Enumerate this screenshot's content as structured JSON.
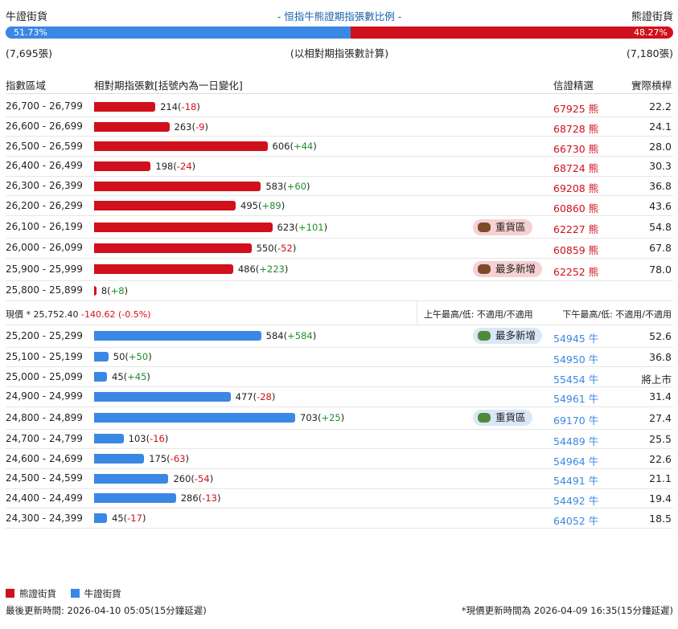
{
  "header": {
    "bull_label": "牛證街貨",
    "title": "- 恒指牛熊證期指張數比例 -",
    "bear_label": "熊證街貨"
  },
  "ratio": {
    "bull_pct_label": "51.73%",
    "bear_pct_label": "48.27%",
    "bull_fraction": 0.5173,
    "bull_color": "#3b87e4",
    "bear_color": "#d0101b"
  },
  "counts": {
    "bull": "(7,695張)",
    "note": "(以相對期指張數計算)",
    "bear": "(7,180張)"
  },
  "columns": {
    "range": "指數區域",
    "contracts": "相對期指張數[括號內為一日變化]",
    "code": "信證精選",
    "leverage": "實際槓桿"
  },
  "bear_rows": [
    {
      "range": "26,700 - 26,799",
      "value": 214,
      "value_text": "214",
      "change": "-18",
      "code": "67925 熊",
      "leverage": "22.2",
      "tag": ""
    },
    {
      "range": "26,600 - 26,699",
      "value": 263,
      "value_text": "263",
      "change": "-9",
      "code": "68728 熊",
      "leverage": "24.1",
      "tag": ""
    },
    {
      "range": "26,500 - 26,599",
      "value": 606,
      "value_text": "606",
      "change": "+44",
      "code": "66730 熊",
      "leverage": "28.0",
      "tag": ""
    },
    {
      "range": "26,400 - 26,499",
      "value": 198,
      "value_text": "198",
      "change": "-24",
      "code": "68724 熊",
      "leverage": "30.3",
      "tag": ""
    },
    {
      "range": "26,300 - 26,399",
      "value": 583,
      "value_text": "583",
      "change": "+60",
      "code": "69208 熊",
      "leverage": "36.8",
      "tag": ""
    },
    {
      "range": "26,200 - 26,299",
      "value": 495,
      "value_text": "495",
      "change": "+89",
      "code": "60860 熊",
      "leverage": "43.6",
      "tag": ""
    },
    {
      "range": "26,100 - 26,199",
      "value": 623,
      "value_text": "623",
      "change": "+101",
      "code": "62227 熊",
      "leverage": "54.8",
      "tag": "重貨區"
    },
    {
      "range": "26,000 - 26,099",
      "value": 550,
      "value_text": "550",
      "change": "-52",
      "code": "60859 熊",
      "leverage": "67.8",
      "tag": ""
    },
    {
      "range": "25,900 - 25,999",
      "value": 486,
      "value_text": "486",
      "change": "+223",
      "code": "62252 熊",
      "leverage": "78.0",
      "tag": "最多新增"
    },
    {
      "range": "25,800 - 25,899",
      "value": 8,
      "value_text": "8",
      "change": "+8",
      "code": "",
      "leverage": "",
      "tag": ""
    }
  ],
  "spot": {
    "label": "現價 *",
    "price": "25,752.40",
    "change": "-140.62 (-0.5%)",
    "am_label": "上午最高/低: 不適用/不適用",
    "pm_label": "下午最高/低: 不適用/不適用"
  },
  "bull_rows": [
    {
      "range": "25,200 - 25,299",
      "value": 584,
      "value_text": "584",
      "change": "+584",
      "code": "54945 牛",
      "leverage": "52.6",
      "tag": "最多新增"
    },
    {
      "range": "25,100 - 25,199",
      "value": 50,
      "value_text": "50",
      "change": "+50",
      "code": "54950 牛",
      "leverage": "36.8",
      "tag": ""
    },
    {
      "range": "25,000 - 25,099",
      "value": 45,
      "value_text": "45",
      "change": "+45",
      "code": "55454 牛",
      "leverage": "將上市",
      "tag": ""
    },
    {
      "range": "24,900 - 24,999",
      "value": 477,
      "value_text": "477",
      "change": "-28",
      "code": "54961 牛",
      "leverage": "31.4",
      "tag": ""
    },
    {
      "range": "24,800 - 24,899",
      "value": 703,
      "value_text": "703",
      "change": "+25",
      "code": "69170 牛",
      "leverage": "27.4",
      "tag": "重貨區"
    },
    {
      "range": "24,700 - 24,799",
      "value": 103,
      "value_text": "103",
      "change": "-16",
      "code": "54489 牛",
      "leverage": "25.5",
      "tag": ""
    },
    {
      "range": "24,600 - 24,699",
      "value": 175,
      "value_text": "175",
      "change": "-63",
      "code": "54964 牛",
      "leverage": "22.6",
      "tag": ""
    },
    {
      "range": "24,500 - 24,599",
      "value": 260,
      "value_text": "260",
      "change": "-54",
      "code": "54491 牛",
      "leverage": "21.1",
      "tag": ""
    },
    {
      "range": "24,400 - 24,499",
      "value": 286,
      "value_text": "286",
      "change": "-13",
      "code": "54492 牛",
      "leverage": "19.4",
      "tag": ""
    },
    {
      "range": "24,300 - 24,399",
      "value": 45,
      "value_text": "45",
      "change": "-17",
      "code": "64052 牛",
      "leverage": "18.5",
      "tag": ""
    }
  ],
  "legend": {
    "bear_label": "熊證街貨",
    "bull_label": "牛證街貨"
  },
  "footer": {
    "last_update": "最後更新時間: 2026-04-10 05:05(15分鐘延遲)",
    "spot_update": "*現價更新時間為 2026-04-09 16:35(15分鐘延遲)"
  }
}
